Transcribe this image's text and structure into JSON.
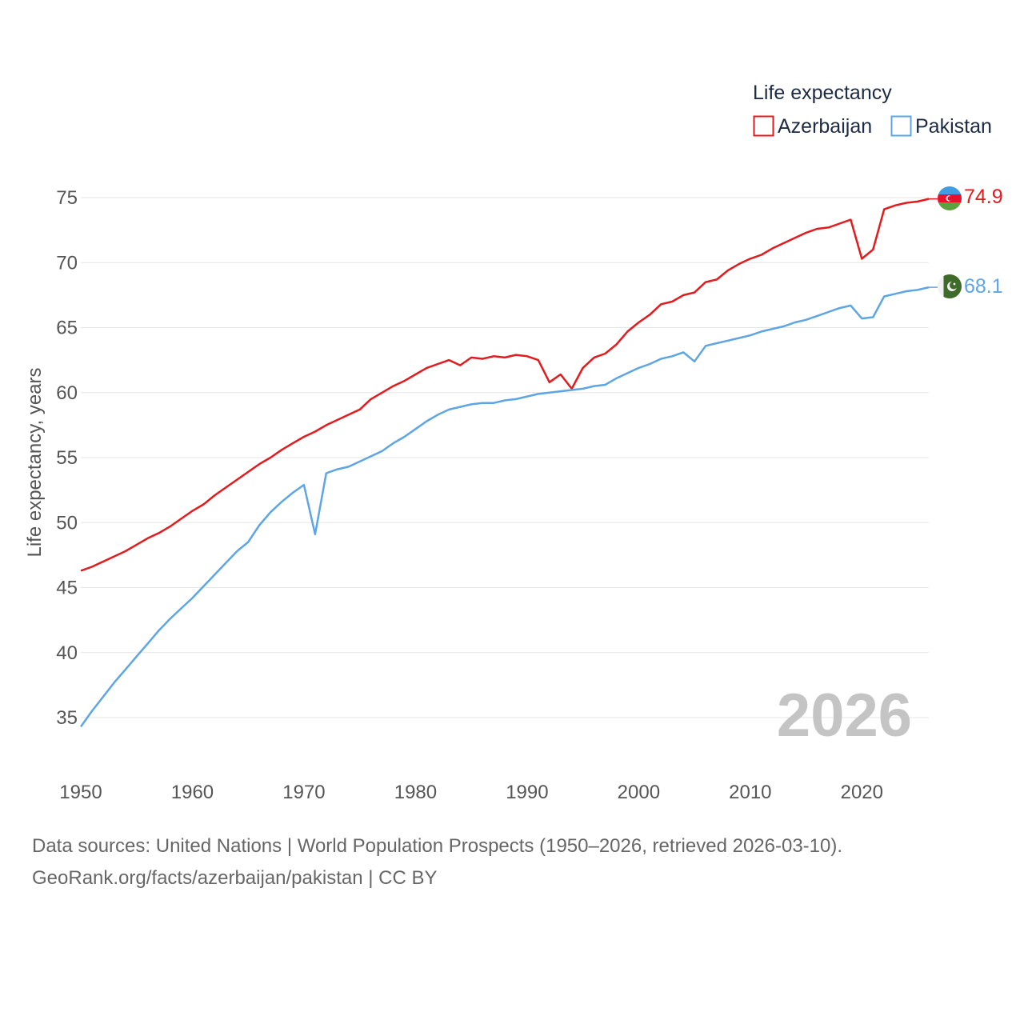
{
  "chart_data": {
    "type": "line",
    "title": "",
    "xlabel": "",
    "ylabel": "Life expectancy, years",
    "xlim": [
      1950,
      2026
    ],
    "ylim": [
      32,
      77
    ],
    "x_ticks": [
      1950,
      1960,
      1970,
      1980,
      1990,
      2000,
      2010,
      2020
    ],
    "y_ticks": [
      35,
      40,
      45,
      50,
      55,
      60,
      65,
      70,
      75
    ],
    "grid": "horizontal",
    "legend_title": "Life expectancy",
    "legend_position": "top-right",
    "year_stamp": "2026",
    "x": [
      1950,
      1951,
      1952,
      1953,
      1954,
      1955,
      1956,
      1957,
      1958,
      1959,
      1960,
      1961,
      1962,
      1963,
      1964,
      1965,
      1966,
      1967,
      1968,
      1969,
      1970,
      1971,
      1972,
      1973,
      1974,
      1975,
      1976,
      1977,
      1978,
      1979,
      1980,
      1981,
      1982,
      1983,
      1984,
      1985,
      1986,
      1987,
      1988,
      1989,
      1990,
      1991,
      1992,
      1993,
      1994,
      1995,
      1996,
      1997,
      1998,
      1999,
      2000,
      2001,
      2002,
      2003,
      2004,
      2005,
      2006,
      2007,
      2008,
      2009,
      2010,
      2011,
      2012,
      2013,
      2014,
      2015,
      2016,
      2017,
      2018,
      2019,
      2020,
      2021,
      2022,
      2023,
      2024,
      2025,
      2026
    ],
    "series": [
      {
        "name": "Azerbaijan",
        "color": "#e41a1c",
        "end_label": "74.9",
        "values": [
          46.3,
          46.6,
          47.0,
          47.4,
          47.8,
          48.3,
          48.8,
          49.2,
          49.7,
          50.3,
          50.9,
          51.4,
          52.1,
          52.7,
          53.3,
          53.9,
          54.5,
          55.0,
          55.6,
          56.1,
          56.6,
          57.0,
          57.5,
          57.9,
          58.3,
          58.7,
          59.5,
          60.0,
          60.5,
          60.9,
          61.4,
          61.9,
          62.2,
          62.5,
          62.1,
          62.7,
          62.6,
          62.8,
          62.7,
          62.9,
          62.8,
          62.5,
          60.8,
          61.4,
          60.3,
          61.9,
          62.7,
          63.0,
          63.7,
          64.7,
          65.4,
          66.0,
          66.8,
          67.0,
          67.5,
          67.7,
          68.5,
          68.7,
          69.4,
          69.9,
          70.3,
          70.6,
          71.1,
          71.5,
          71.9,
          72.3,
          72.6,
          72.7,
          73.0,
          73.3,
          70.3,
          71.0,
          74.1,
          74.4,
          74.6,
          74.7,
          74.9
        ]
      },
      {
        "name": "Pakistan",
        "color": "#5da5e5",
        "end_label": "68.1",
        "values": [
          34.3,
          35.5,
          36.6,
          37.7,
          38.7,
          39.7,
          40.7,
          41.7,
          42.6,
          43.4,
          44.2,
          45.1,
          46.0,
          46.9,
          47.8,
          48.5,
          49.8,
          50.8,
          51.6,
          52.3,
          52.9,
          49.1,
          53.8,
          54.1,
          54.3,
          54.7,
          55.1,
          55.5,
          56.1,
          56.6,
          57.2,
          57.8,
          58.3,
          58.7,
          58.9,
          59.1,
          59.2,
          59.2,
          59.4,
          59.5,
          59.7,
          59.9,
          60.0,
          60.1,
          60.2,
          60.3,
          60.5,
          60.6,
          61.1,
          61.5,
          61.9,
          62.2,
          62.6,
          62.8,
          63.1,
          62.4,
          63.6,
          63.8,
          64.0,
          64.2,
          64.4,
          64.7,
          64.9,
          65.1,
          65.4,
          65.6,
          65.9,
          66.2,
          66.5,
          66.7,
          65.7,
          65.8,
          67.4,
          67.6,
          67.8,
          67.9,
          68.1
        ]
      }
    ]
  },
  "flags": {
    "azerbaijan": {
      "blue": "#3f9de0",
      "red": "#e8112d",
      "green": "#5fa040",
      "white": "#ffffff"
    },
    "pakistan": {
      "green": "#3f6b2a",
      "white": "#f2f2f2"
    }
  },
  "colors": {
    "grid": "#e6e6e6",
    "ticks": "#555555",
    "stamp": "#c4c4c4"
  },
  "sources": {
    "line1": "Data sources: United Nations | World Population Prospects (1950–2026, retrieved 2026-03-10).",
    "line2": "GeoRank.org/facts/azerbaijan/pakistan | CC BY"
  }
}
